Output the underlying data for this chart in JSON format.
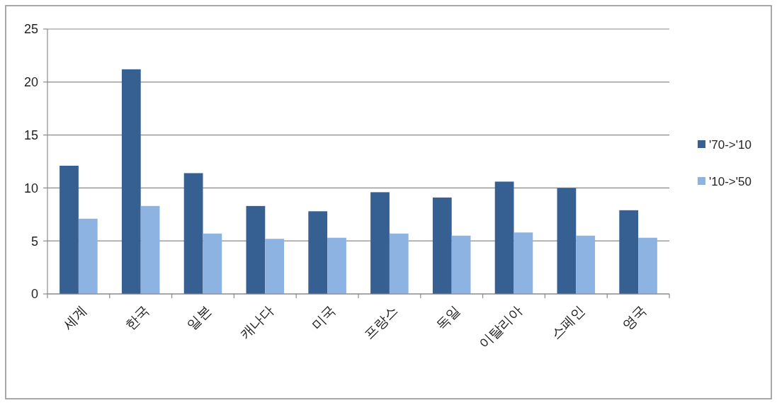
{
  "chart_data": {
    "type": "bar",
    "categories": [
      "세계",
      "한국",
      "일본",
      "캐나다",
      "미국",
      "프랑스",
      "독일",
      "이탈리아",
      "스페인",
      "영국"
    ],
    "series": [
      {
        "name": "'70->'10",
        "color": "#376092",
        "values": [
          12.1,
          21.2,
          11.4,
          8.3,
          7.8,
          9.6,
          9.1,
          10.6,
          10.0,
          7.9
        ]
      },
      {
        "name": "'10->'50",
        "color": "#8db3e2",
        "values": [
          7.1,
          8.3,
          5.7,
          5.2,
          5.3,
          5.7,
          5.5,
          5.8,
          5.5,
          5.3
        ]
      }
    ],
    "ylim": [
      0,
      25
    ],
    "yticks": [
      0,
      5,
      10,
      15,
      20,
      25
    ],
    "grid": "y",
    "legend": "right"
  }
}
